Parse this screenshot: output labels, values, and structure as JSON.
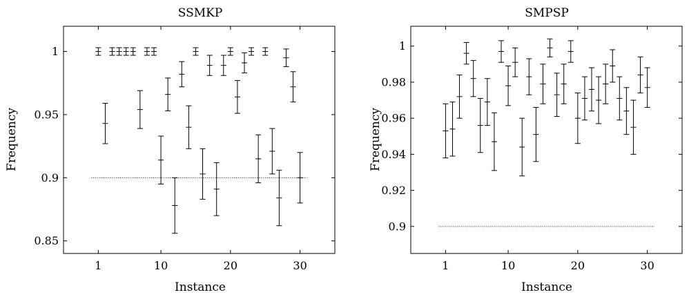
{
  "chart_data": [
    {
      "type": "scatter",
      "title": "SSMKP",
      "xlabel": "Instance",
      "ylabel": "Frequency",
      "xlim": [
        -4,
        35
      ],
      "ylim": [
        0.84,
        1.02
      ],
      "xticks": [
        1,
        10,
        20,
        30
      ],
      "xtick_labels": [
        "1",
        "10",
        "20",
        "30"
      ],
      "yticks": [
        0.85,
        0.9,
        0.95,
        1.0
      ],
      "ytick_labels": [
        "0.85",
        "0.9",
        "0.95",
        "1"
      ],
      "reference_line": {
        "y": 0.9,
        "x_range": [
          0,
          31
        ],
        "style": "dotted"
      },
      "grid": false,
      "legend": "none",
      "series": [
        {
          "x": [
            1,
            2,
            3,
            4,
            5,
            6,
            7,
            8,
            9,
            10,
            11,
            12,
            13,
            14,
            15,
            16,
            17,
            18,
            19,
            20,
            21,
            22,
            23,
            24,
            25,
            26,
            27,
            28,
            29,
            30
          ],
          "y": [
            1.0,
            0.943,
            1.0,
            1.0,
            1.0,
            1.0,
            0.954,
            1.0,
            1.0,
            0.914,
            0.966,
            0.878,
            0.982,
            0.94,
            1.0,
            0.903,
            0.989,
            0.891,
            0.989,
            1.0,
            0.964,
            0.991,
            1.0,
            0.915,
            1.0,
            0.921,
            0.884,
            0.995,
            0.972,
            0.9
          ],
          "error": [
            0.003,
            0.016,
            0.003,
            0.003,
            0.003,
            0.003,
            0.015,
            0.003,
            0.003,
            0.019,
            0.013,
            0.022,
            0.01,
            0.017,
            0.003,
            0.02,
            0.008,
            0.021,
            0.008,
            0.003,
            0.013,
            0.008,
            0.003,
            0.019,
            0.003,
            0.018,
            0.022,
            0.007,
            0.012,
            0.02
          ]
        }
      ]
    },
    {
      "type": "scatter",
      "title": "SMPSP",
      "xlabel": "Instance",
      "ylabel": "Frequency",
      "xlim": [
        -4,
        35
      ],
      "ylim": [
        0.885,
        1.011
      ],
      "xticks": [
        1,
        10,
        20,
        30
      ],
      "xtick_labels": [
        "1",
        "10",
        "20",
        "30"
      ],
      "yticks": [
        0.9,
        0.92,
        0.94,
        0.96,
        0.98,
        1.0
      ],
      "ytick_labels": [
        "0.9",
        "0.92",
        "0.94",
        "0.96",
        "0.98",
        "1"
      ],
      "reference_line": {
        "y": 0.9,
        "x_range": [
          0,
          31
        ],
        "style": "dotted"
      },
      "grid": false,
      "legend": "none",
      "series": [
        {
          "x": [
            1,
            2,
            3,
            4,
            5,
            6,
            7,
            8,
            9,
            10,
            11,
            12,
            13,
            14,
            15,
            16,
            17,
            18,
            19,
            20,
            21,
            22,
            23,
            24,
            25,
            26,
            27,
            28,
            29,
            30
          ],
          "y": [
            0.953,
            0.954,
            0.972,
            0.996,
            0.982,
            0.956,
            0.969,
            0.947,
            0.997,
            0.978,
            0.991,
            0.944,
            0.983,
            0.951,
            0.979,
            0.999,
            0.973,
            0.979,
            0.997,
            0.96,
            0.971,
            0.976,
            0.97,
            0.979,
            0.989,
            0.971,
            0.964,
            0.955,
            0.984,
            0.977
          ],
          "error": [
            0.015,
            0.015,
            0.012,
            0.006,
            0.01,
            0.015,
            0.013,
            0.016,
            0.006,
            0.011,
            0.008,
            0.016,
            0.01,
            0.015,
            0.011,
            0.005,
            0.012,
            0.011,
            0.006,
            0.014,
            0.012,
            0.012,
            0.013,
            0.011,
            0.009,
            0.012,
            0.013,
            0.015,
            0.01,
            0.011
          ]
        }
      ]
    }
  ]
}
